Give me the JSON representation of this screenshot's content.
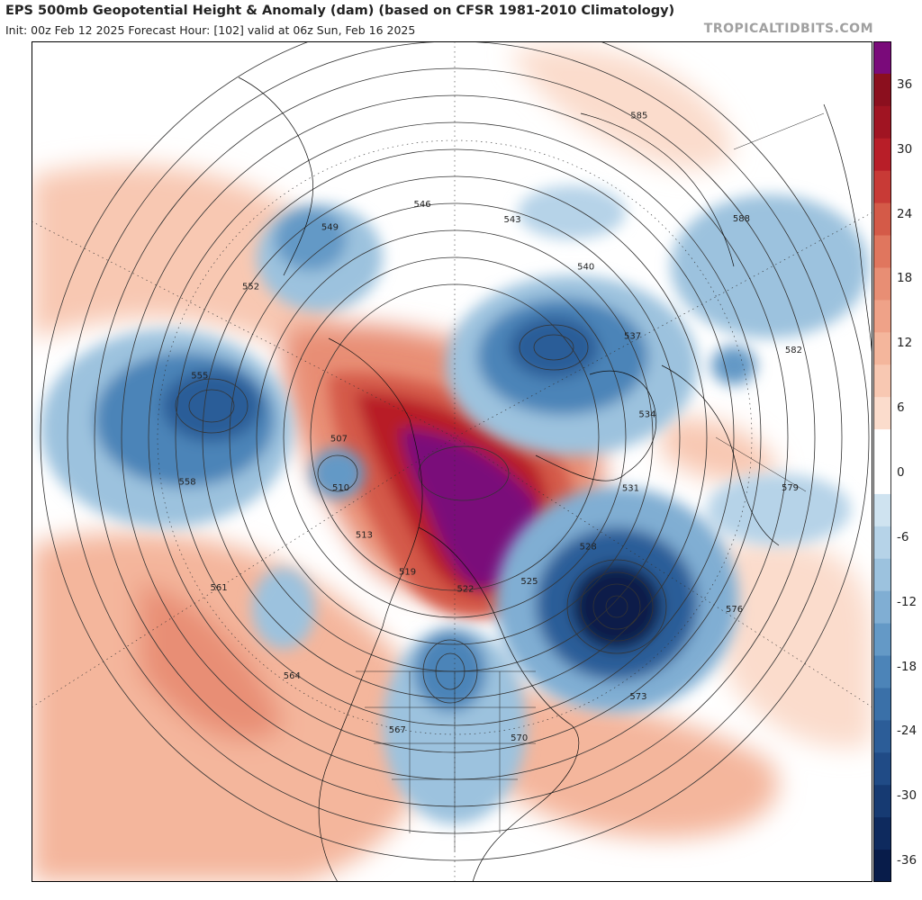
{
  "header": {
    "title": "EPS 500mb Geopotential Height & Anomaly (dam) (based on CFSR 1981-2010 Climatology)",
    "subtitle": "Init: 00z Feb 12 2025   Forecast Hour: [102]   valid at 06z Sun, Feb 16 2025",
    "site": "TROPICALTIDBITS.COM"
  },
  "colorbar": {
    "bins": [
      {
        "value": 39,
        "color": "#7a0a7a"
      },
      {
        "value": 36,
        "color": "#8b0f1e"
      },
      {
        "value": 33,
        "color": "#a01422"
      },
      {
        "value": 30,
        "color": "#b81e28"
      },
      {
        "value": 27,
        "color": "#c83a36"
      },
      {
        "value": 24,
        "color": "#d45a48"
      },
      {
        "value": 21,
        "color": "#e0765e"
      },
      {
        "value": 18,
        "color": "#e88e74"
      },
      {
        "value": 15,
        "color": "#efa288"
      },
      {
        "value": 12,
        "color": "#f4b69c"
      },
      {
        "value": 9,
        "color": "#f8c8b2"
      },
      {
        "value": 6,
        "color": "#fbdccc"
      },
      {
        "value": 3,
        "color": "#ffffff"
      },
      {
        "value": 0,
        "color": "#ffffff"
      },
      {
        "value": -3,
        "color": "#cfe3f0"
      },
      {
        "value": -6,
        "color": "#b6d3e8"
      },
      {
        "value": -9,
        "color": "#9cc2de"
      },
      {
        "value": -12,
        "color": "#80aed3"
      },
      {
        "value": -15,
        "color": "#6499c6"
      },
      {
        "value": -18,
        "color": "#4c84b8"
      },
      {
        "value": -21,
        "color": "#3a70a8"
      },
      {
        "value": -24,
        "color": "#2c5d98"
      },
      {
        "value": -27,
        "color": "#204b86"
      },
      {
        "value": -30,
        "color": "#163a72"
      },
      {
        "value": -33,
        "color": "#0e2a5e"
      },
      {
        "value": -36,
        "color": "#081c4a"
      }
    ],
    "labels": [
      "36",
      "30",
      "24",
      "18",
      "12",
      "6",
      "0",
      "-6",
      "-12",
      "-18",
      "-24",
      "-30",
      "-36"
    ]
  },
  "map": {
    "anomalies": [
      {
        "kind": "positive",
        "value": 39,
        "region": "northern Canada / Hudson Bay ridge"
      },
      {
        "kind": "negative",
        "value": -36,
        "region": "North Atlantic low south of Greenland"
      },
      {
        "kind": "negative",
        "value": -24,
        "region": "North Pacific / Gulf of Alaska low"
      },
      {
        "kind": "negative",
        "value": -24,
        "region": "Siberia / Arctic low"
      },
      {
        "kind": "negative",
        "value": -18,
        "region": "central United States trough"
      },
      {
        "kind": "negative",
        "value": -12,
        "region": "Scandinavia / North Sea"
      },
      {
        "kind": "negative",
        "value": -12,
        "region": "East Asia / Japan"
      }
    ],
    "contour_labels": [
      "585",
      "588",
      "582",
      "579",
      "576",
      "573",
      "570",
      "567",
      "564",
      "561",
      "558",
      "555",
      "552",
      "549",
      "546",
      "543",
      "540",
      "537",
      "534",
      "531",
      "528",
      "525",
      "522",
      "519",
      "513",
      "510",
      "507"
    ]
  }
}
